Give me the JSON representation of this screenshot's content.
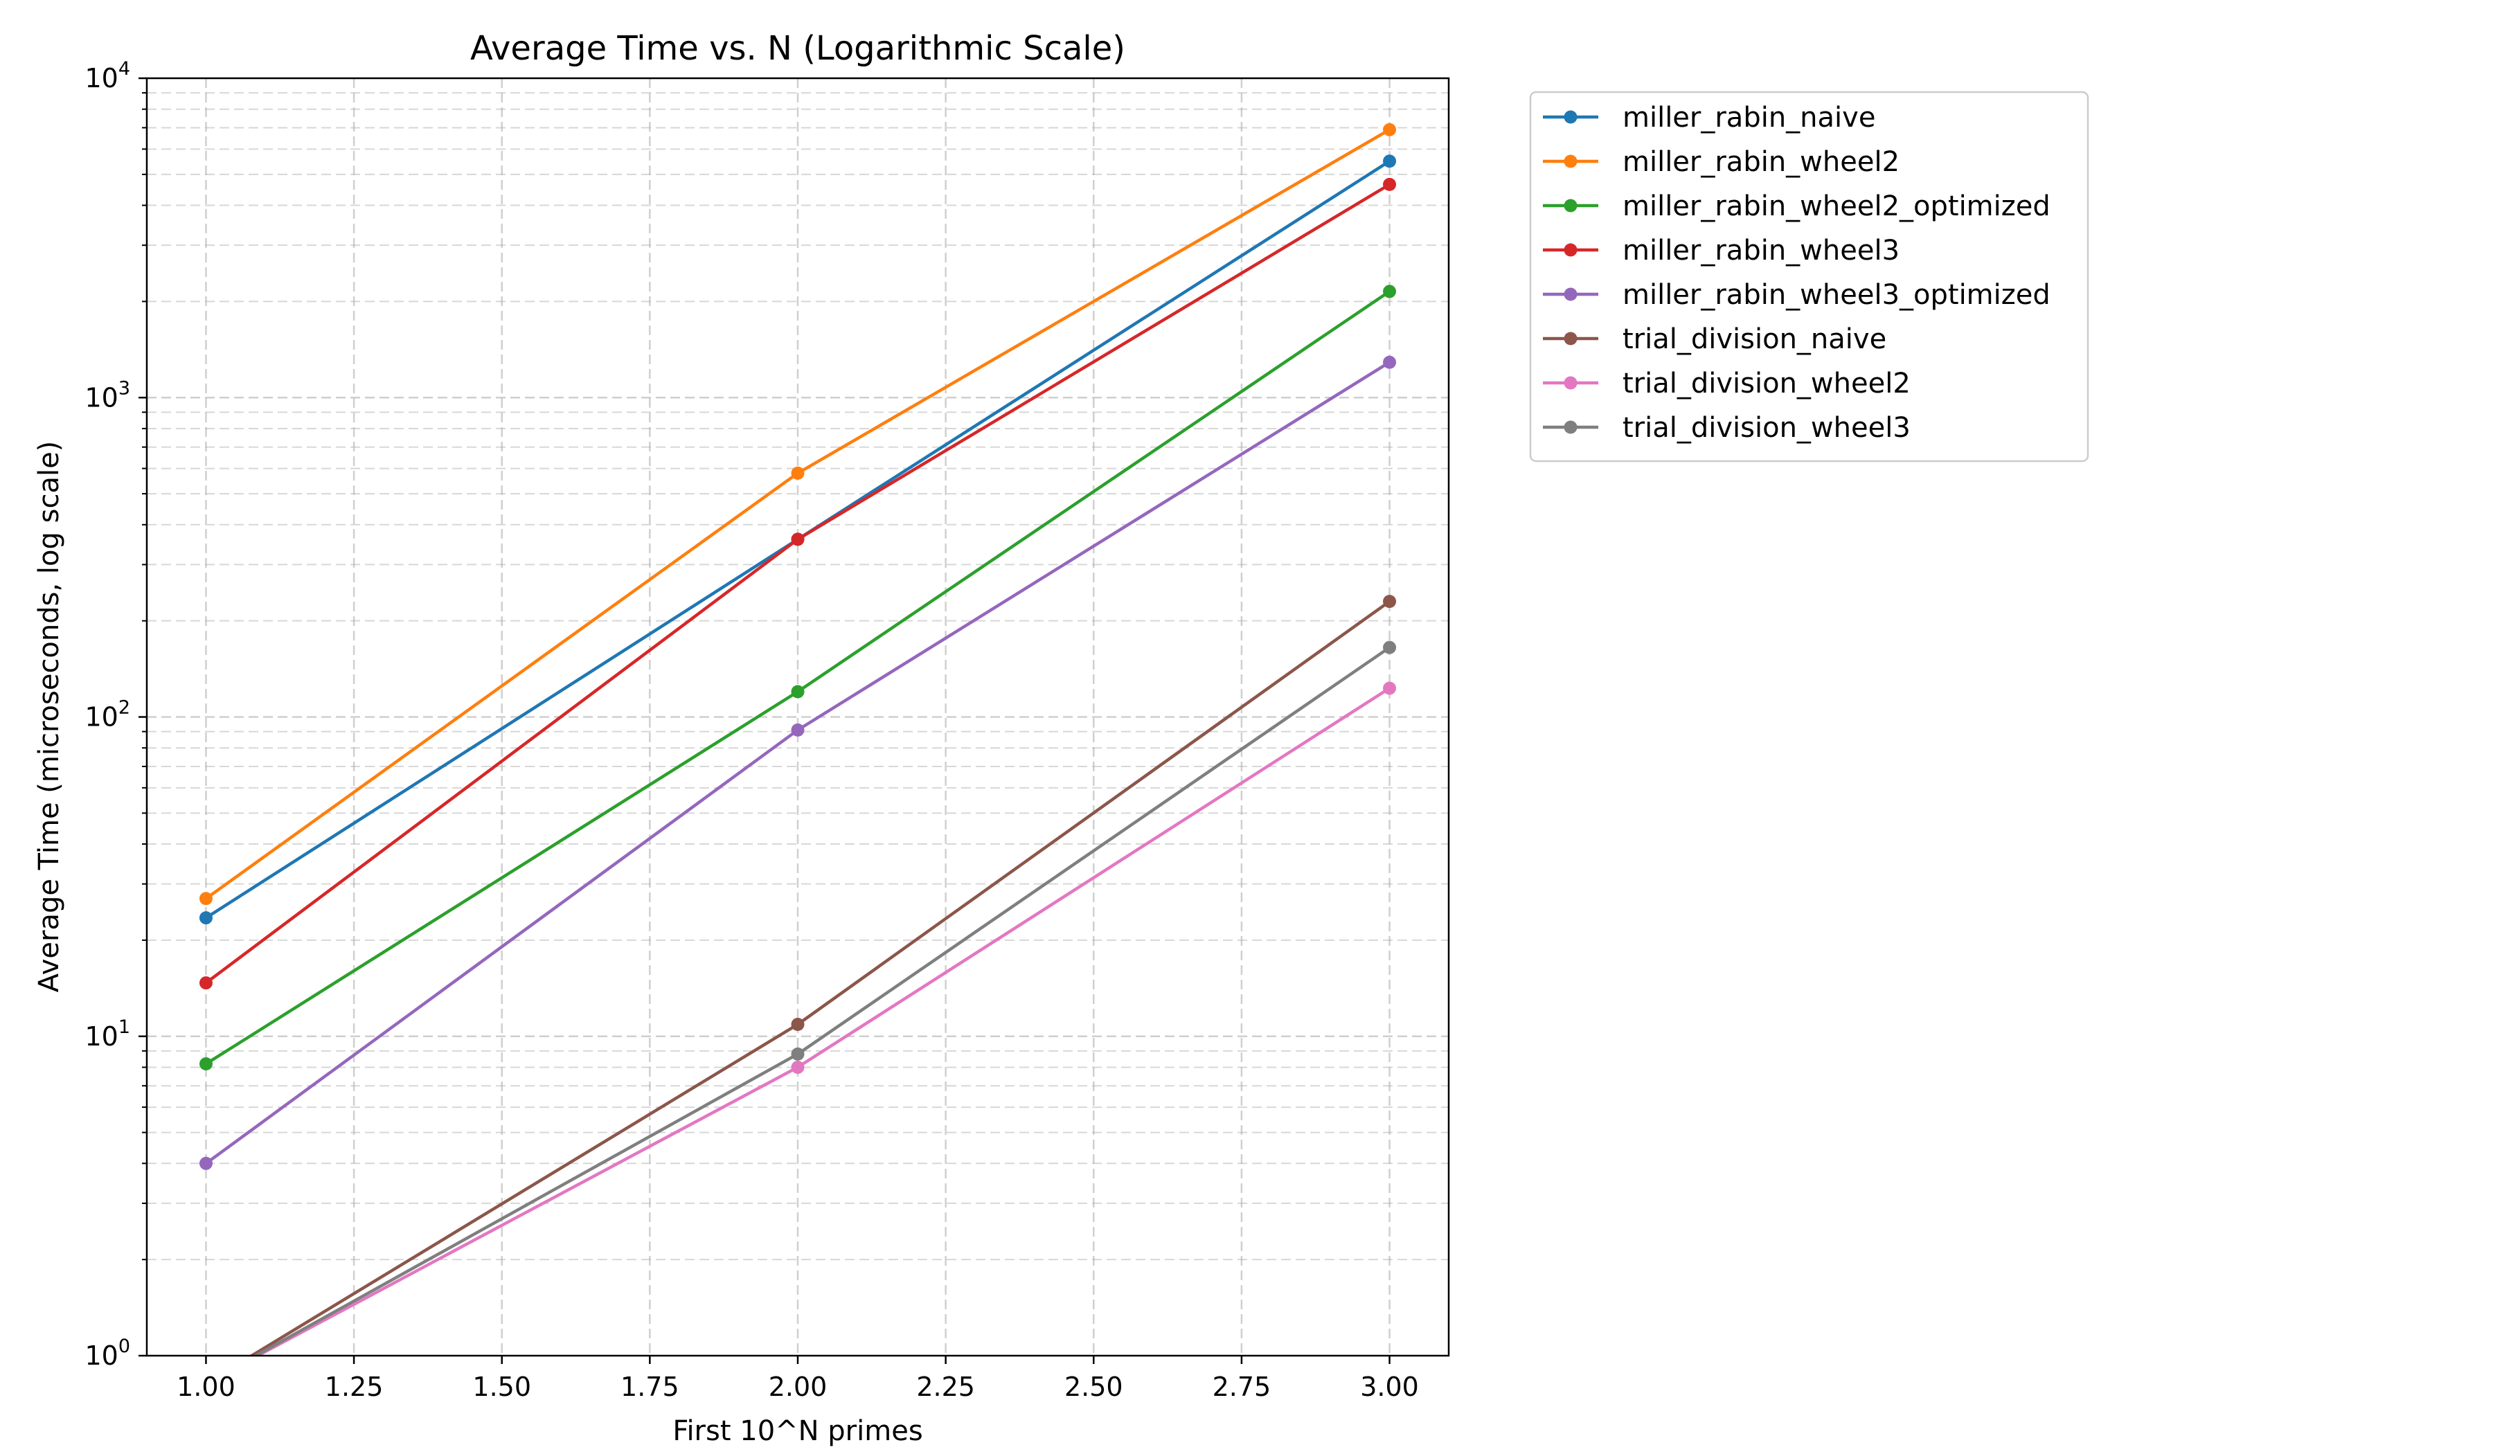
{
  "chart_data": {
    "type": "line",
    "title": "Average Time vs. N (Logarithmic Scale)",
    "xlabel": "First 10^N primes",
    "ylabel": "Average Time (microseconds, log scale)",
    "xlim": [
      0.9,
      3.1
    ],
    "ylim": [
      1,
      10000
    ],
    "yscale": "log",
    "grid": true,
    "legend_position": "outside-upper-right",
    "x_ticks": [
      1.0,
      1.25,
      1.5,
      1.75,
      2.0,
      2.25,
      2.5,
      2.75,
      3.0
    ],
    "x_tick_labels": [
      "1.00",
      "1.25",
      "1.50",
      "1.75",
      "2.00",
      "2.25",
      "2.50",
      "2.75",
      "3.00"
    ],
    "y_ticks": [
      1,
      10,
      100,
      1000,
      10000
    ],
    "y_tick_labels": [
      {
        "base": "10",
        "exp": "0"
      },
      {
        "base": "10",
        "exp": "1"
      },
      {
        "base": "10",
        "exp": "2"
      },
      {
        "base": "10",
        "exp": "3"
      },
      {
        "base": "10",
        "exp": "4"
      }
    ],
    "series": [
      {
        "name": "miller_rabin_naive",
        "color": "#1f77b4",
        "x": [
          1,
          2,
          3
        ],
        "values": [
          23.5,
          360,
          5500
        ]
      },
      {
        "name": "miller_rabin_wheel2",
        "color": "#ff7f0e",
        "x": [
          1,
          2,
          3
        ],
        "values": [
          27,
          580,
          6900
        ]
      },
      {
        "name": "miller_rabin_wheel2_optimized",
        "color": "#2ca02c",
        "x": [
          1,
          2,
          3
        ],
        "values": [
          8.2,
          120,
          2150
        ]
      },
      {
        "name": "miller_rabin_wheel3",
        "color": "#d62728",
        "x": [
          1,
          2,
          3
        ],
        "values": [
          14.7,
          360,
          4650
        ]
      },
      {
        "name": "miller_rabin_wheel3_optimized",
        "color": "#9467bd",
        "x": [
          1,
          2,
          3
        ],
        "values": [
          4.0,
          91,
          1290
        ]
      },
      {
        "name": "trial_division_naive",
        "color": "#8c564b",
        "x": [
          1,
          2,
          3
        ],
        "values": [
          0,
          10.9,
          230
        ]
      },
      {
        "name": "trial_division_wheel2",
        "color": "#e377c2",
        "x": [
          1,
          2,
          3
        ],
        "values": [
          0,
          8.0,
          123
        ]
      },
      {
        "name": "trial_division_wheel3",
        "color": "#7f7f7f",
        "x": [
          1,
          2,
          3
        ],
        "values": [
          0,
          8.8,
          165
        ]
      }
    ]
  }
}
